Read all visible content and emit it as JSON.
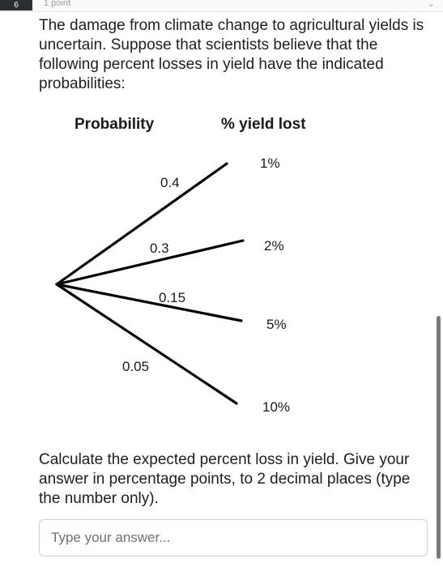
{
  "header": {
    "question_badge": "6",
    "points": "1 point"
  },
  "question_text": "The damage from climate change to agricultural yields is uncertain. Suppose that scientists believe that the following percent losses in yield have the indicated probabilities:",
  "diagram": {
    "probability_header": "Probability",
    "yield_header": "% yield lost",
    "branches": [
      {
        "probability": "0.4",
        "yield_lost": "1%"
      },
      {
        "probability": "0.3",
        "yield_lost": "2%"
      },
      {
        "probability": "0.15",
        "yield_lost": "5%"
      },
      {
        "probability": "0.05",
        "yield_lost": "10%"
      }
    ]
  },
  "prompt_text": "Calculate the expected percent loss in yield. Give your answer in percentage points, to 2 decimal places (type the number only).",
  "answer": {
    "value": "",
    "placeholder": "Type your answer..."
  }
}
